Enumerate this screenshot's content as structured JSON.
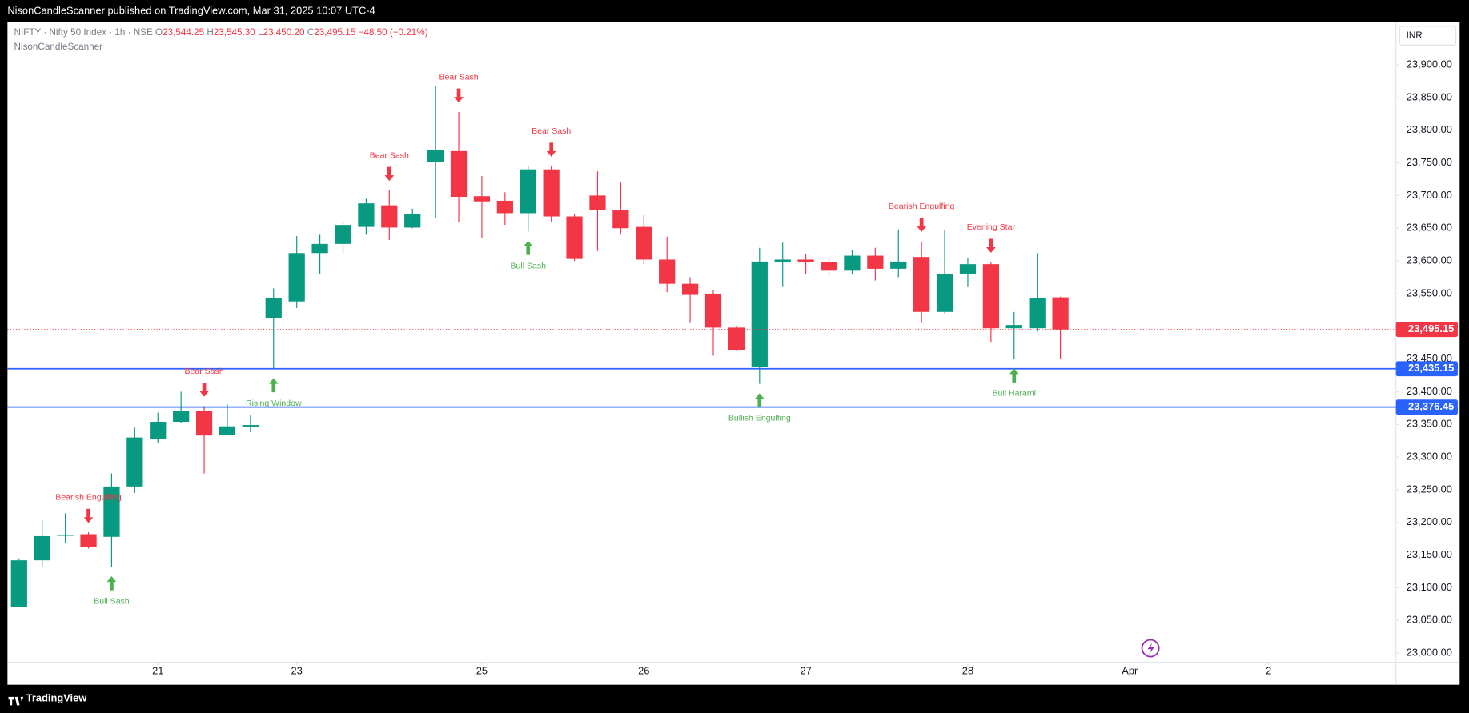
{
  "header": {
    "publisher": "NisonCandleScanner published on TradingView.com, Mar 31, 2025 10:07 UTC-4",
    "symbol": "NIFTY · Nifty 50 Index · 1h · NSE",
    "ohlc": [
      {
        "key": "O",
        "value": "23,544.25"
      },
      {
        "key": "H",
        "value": "23,545.30"
      },
      {
        "key": "L",
        "value": "23,450.20"
      },
      {
        "key": "C",
        "value": "23,495.15"
      }
    ],
    "change": "−48.50 (−0.21%)",
    "indicator": "NisonCandleScanner",
    "currency": "INR"
  },
  "footer": {
    "brand": "TradingView"
  },
  "chart_data": {
    "type": "candlestick",
    "up_color": "#089981",
    "down_color": "#f23645",
    "open": [
      23070,
      23142,
      23181,
      23182,
      23178,
      23255,
      23328,
      23354,
      23370,
      23334,
      23346,
      23513,
      23538,
      23612,
      23626,
      23652,
      23685,
      23651,
      23751,
      23768,
      23699,
      23692,
      23673,
      23740,
      23668,
      23700,
      23678,
      23652,
      23602,
      23565,
      23550,
      23498,
      23438,
      23598,
      23602,
      23598,
      23585,
      23608,
      23588,
      23606,
      23522,
      23580,
      23595,
      23497,
      23497,
      23544.25
    ],
    "high": [
      23145,
      23203,
      23214,
      23185,
      23275,
      23345,
      23368,
      23400,
      23378,
      23381,
      23365,
      23558,
      23638,
      23640,
      23660,
      23695,
      23708,
      23680,
      23868,
      23828,
      23730,
      23705,
      23745,
      23745,
      23672,
      23737,
      23720,
      23670,
      23637,
      23575,
      23555,
      23500,
      23620,
      23628,
      23610,
      23605,
      23617,
      23620,
      23648,
      23630,
      23648,
      23605,
      23598,
      23522,
      23612,
      23545.3
    ],
    "low": [
      23070,
      23132,
      23168,
      23160,
      23132,
      23245,
      23322,
      23352,
      23275,
      23333,
      23338,
      23435,
      23528,
      23580,
      23612,
      23640,
      23632,
      23650,
      23665,
      23660,
      23635,
      23655,
      23645,
      23660,
      23600,
      23615,
      23640,
      23595,
      23552,
      23505,
      23455,
      23462,
      23412,
      23560,
      23580,
      23578,
      23580,
      23570,
      23575,
      23505,
      23520,
      23560,
      23475,
      23450,
      23492,
      23450.2
    ],
    "close": [
      23142,
      23179,
      23181,
      23163,
      23255,
      23330,
      23354,
      23370,
      23333,
      23347,
      23349,
      23543,
      23612,
      23626,
      23655,
      23688,
      23651,
      23672,
      23770,
      23698,
      23691,
      23673,
      23740,
      23668,
      23603,
      23678,
      23650,
      23602,
      23565,
      23548,
      23498,
      23463,
      23599,
      23602,
      23598,
      23585,
      23608,
      23588,
      23599,
      23522,
      23580,
      23595,
      23497,
      23502,
      23543,
      23495.15
    ],
    "xlim": [
      -0.5,
      59.5
    ],
    "xticks": [
      {
        "value": 6,
        "label": "21"
      },
      {
        "value": 12,
        "label": "23"
      },
      {
        "value": 20,
        "label": "25"
      },
      {
        "value": 27,
        "label": "26"
      },
      {
        "value": 34,
        "label": "27"
      },
      {
        "value": 41,
        "label": "28"
      },
      {
        "value": 48,
        "label": "Apr"
      },
      {
        "value": 54,
        "label": "2"
      }
    ],
    "ylim": [
      22986,
      23966
    ],
    "yticks": [
      {
        "value": 23000,
        "label": "23,000.00"
      },
      {
        "value": 23050,
        "label": "23,050.00"
      },
      {
        "value": 23100,
        "label": "23,100.00"
      },
      {
        "value": 23150,
        "label": "23,150.00"
      },
      {
        "value": 23200,
        "label": "23,200.00"
      },
      {
        "value": 23250,
        "label": "23,250.00"
      },
      {
        "value": 23300,
        "label": "23,300.00"
      },
      {
        "value": 23350,
        "label": "23,350.00"
      },
      {
        "value": 23400,
        "label": "23,400.00"
      },
      {
        "value": 23450,
        "label": "23,450.00"
      },
      {
        "value": 23500,
        "label": "23,500.00"
      },
      {
        "value": 23550,
        "label": "23,550.00"
      },
      {
        "value": 23600,
        "label": "23,600.00"
      },
      {
        "value": 23650,
        "label": "23,650.00"
      },
      {
        "value": 23700,
        "label": "23,700.00"
      },
      {
        "value": 23750,
        "label": "23,750.00"
      },
      {
        "value": 23800,
        "label": "23,800.00"
      },
      {
        "value": 23850,
        "label": "23,850.00"
      },
      {
        "value": 23900,
        "label": "23,900.00"
      }
    ],
    "grid": false,
    "price_lines": [
      {
        "value": 23495.15,
        "label": "23,495.15",
        "color": "#f23645",
        "style": "dotted"
      },
      {
        "value": 23435.15,
        "label": "23,435.15",
        "color": "#2962ff",
        "style": "solid"
      },
      {
        "value": 23376.45,
        "label": "23,376.45",
        "color": "#2962ff",
        "style": "solid"
      }
    ],
    "annotations": [
      {
        "text": "Bearish Engulfing",
        "index": 3,
        "position": "above",
        "color": "#f23645"
      },
      {
        "text": "Bull Sash",
        "index": 4,
        "position": "below",
        "color": "#4caf50"
      },
      {
        "text": "Bear Sash",
        "index": 8,
        "position": "above",
        "color": "#f23645"
      },
      {
        "text": "Rising Window",
        "index": 11,
        "position": "below",
        "color": "#4caf50"
      },
      {
        "text": "Bear Sash",
        "index": 16,
        "position": "above",
        "color": "#f23645"
      },
      {
        "text": "Bear Sash",
        "index": 19,
        "position": "above",
        "color": "#f23645"
      },
      {
        "text": "Bull Sash",
        "index": 22,
        "position": "below",
        "color": "#4caf50"
      },
      {
        "text": "Bear Sash",
        "index": 23,
        "position": "above",
        "color": "#f23645"
      },
      {
        "text": "Bullish Engulfing",
        "index": 32,
        "position": "below",
        "color": "#4caf50"
      },
      {
        "text": "Bearish Engulfing",
        "index": 39,
        "position": "above",
        "color": "#f23645"
      },
      {
        "text": "Evening Star",
        "index": 42,
        "position": "above",
        "color": "#f23645"
      },
      {
        "text": "Bull Harami",
        "index": 43,
        "position": "below",
        "color": "#4caf50"
      }
    ]
  }
}
